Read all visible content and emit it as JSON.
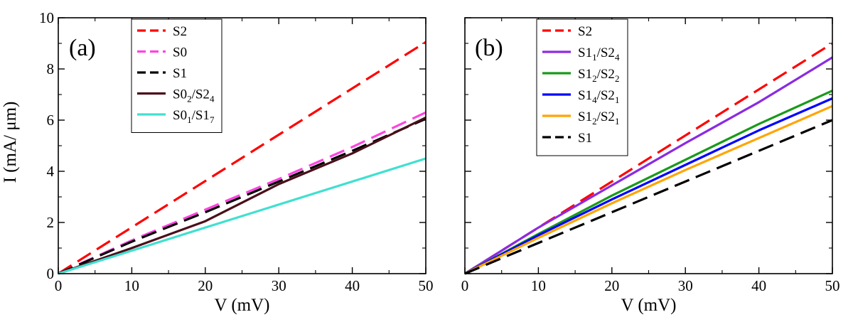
{
  "figure": {
    "y_axis_title": "I (mA/ μm)"
  },
  "chart_data": [
    {
      "type": "line",
      "panel_label": "(a)",
      "xlabel": "V (mV)",
      "ylabel": "I (mA/ μm)",
      "xlim": [
        0,
        50
      ],
      "ylim": [
        0,
        10
      ],
      "xticks": [
        "0",
        "10",
        "20",
        "30",
        "40",
        "50"
      ],
      "yticks": [
        "0",
        "2",
        "4",
        "6",
        "8",
        "10"
      ],
      "legend_position": "top-center",
      "series": [
        {
          "name": "S2",
          "base": "S2",
          "sub1": "",
          "sep": "",
          "base2": "",
          "sub2": "",
          "color": "#ff0000",
          "dash": true,
          "x": [
            0,
            50
          ],
          "y": [
            0,
            9.05
          ]
        },
        {
          "name": "S0",
          "base": "S0",
          "sub1": "",
          "sep": "",
          "base2": "",
          "sub2": "",
          "color": "#ff44e0",
          "dash": true,
          "x": [
            0,
            10,
            20,
            30,
            40,
            50
          ],
          "y": [
            0,
            1.3,
            2.5,
            3.7,
            4.95,
            6.3
          ]
        },
        {
          "name": "S1",
          "base": "S1",
          "sub1": "",
          "sep": "",
          "base2": "",
          "sub2": "",
          "color": "#000000",
          "dash": true,
          "x": [
            0,
            10,
            20,
            30,
            40,
            50
          ],
          "y": [
            0,
            1.25,
            2.4,
            3.6,
            4.8,
            6.05
          ]
        },
        {
          "name": "S0_2/S2_4",
          "base": "S0",
          "sub1": "2",
          "sep": "/",
          "base2": "S2",
          "sub2": "4",
          "color": "#4a0f1a",
          "dash": false,
          "x": [
            0,
            10,
            20,
            30,
            40,
            50
          ],
          "y": [
            0,
            1.0,
            2.05,
            3.5,
            4.7,
            6.1
          ]
        },
        {
          "name": "S0_1/S1_7",
          "base": "S0",
          "sub1": "1",
          "sep": "/",
          "base2": "S1",
          "sub2": "7",
          "color": "#40e0d0",
          "dash": false,
          "x": [
            0,
            50
          ],
          "y": [
            0,
            4.5
          ]
        }
      ]
    },
    {
      "type": "line",
      "panel_label": "(b)",
      "xlabel": "V (mV)",
      "ylabel": "",
      "xlim": [
        0,
        50
      ],
      "ylim": [
        0,
        10
      ],
      "xticks": [
        "0",
        "10",
        "20",
        "30",
        "40",
        "50"
      ],
      "yticks": [],
      "legend_position": "top-center",
      "series": [
        {
          "name": "S2",
          "base": "S2",
          "sub1": "",
          "sep": "",
          "base2": "",
          "sub2": "",
          "color": "#ff0000",
          "dash": true,
          "x": [
            0,
            50
          ],
          "y": [
            0,
            9.0
          ]
        },
        {
          "name": "S1_1/S2_4",
          "base": "S1",
          "sub1": "1",
          "sep": "/",
          "base2": "S2",
          "sub2": "4",
          "color": "#8a2be2",
          "dash": false,
          "x": [
            0,
            10,
            20,
            30,
            40,
            50
          ],
          "y": [
            0,
            1.8,
            3.45,
            5.1,
            6.7,
            8.45
          ]
        },
        {
          "name": "S1_2/S2_2",
          "base": "S1",
          "sub1": "2",
          "sep": "/",
          "base2": "S2",
          "sub2": "2",
          "color": "#1a9a1a",
          "dash": false,
          "x": [
            0,
            10,
            20,
            30,
            40,
            50
          ],
          "y": [
            0,
            1.55,
            3.05,
            4.45,
            5.85,
            7.15
          ]
        },
        {
          "name": "S1_4/S2_1",
          "base": "S1",
          "sub1": "4",
          "sep": "/",
          "base2": "S2",
          "sub2": "1",
          "color": "#0000ff",
          "dash": false,
          "x": [
            0,
            10,
            20,
            30,
            40,
            50
          ],
          "y": [
            0,
            1.5,
            2.9,
            4.25,
            5.6,
            6.85
          ]
        },
        {
          "name": "S1_2/S2_1",
          "base": "S1",
          "sub1": "2",
          "sep": "/",
          "base2": "S2",
          "sub2": "1",
          "color": "#ffa500",
          "dash": false,
          "x": [
            0,
            10,
            20,
            30,
            40,
            50
          ],
          "y": [
            0,
            1.4,
            2.75,
            4.05,
            5.3,
            6.55
          ]
        },
        {
          "name": "S1",
          "base": "S1",
          "sub1": "",
          "sep": "",
          "base2": "",
          "sub2": "",
          "color": "#000000",
          "dash": true,
          "x": [
            0,
            50
          ],
          "y": [
            0,
            6.0
          ]
        }
      ]
    }
  ]
}
